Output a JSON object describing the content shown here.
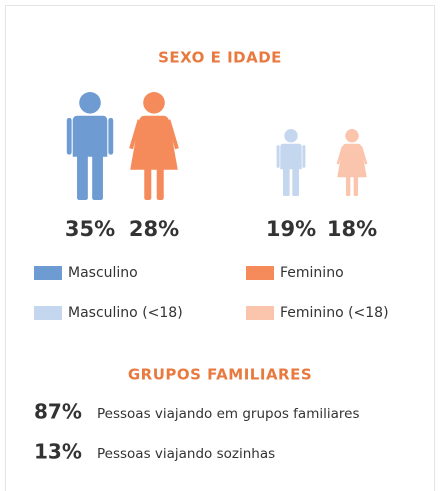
{
  "sex_age": {
    "title": "SEXO E IDADE",
    "figures": [
      {
        "value": "35%",
        "kind": "male",
        "color": "#6f9bd3"
      },
      {
        "value": "28%",
        "kind": "female",
        "color": "#f58a5a"
      },
      {
        "value": "19%",
        "kind": "male",
        "color": "#c5d7ef"
      },
      {
        "value": "18%",
        "kind": "female",
        "color": "#fbc4ac"
      }
    ],
    "legend": [
      {
        "label": "Masculino",
        "color": "#6f9bd3"
      },
      {
        "label": "Feminino",
        "color": "#f58a5a"
      },
      {
        "label": "Masculino (<18)",
        "color": "#c5d7ef"
      },
      {
        "label": "Feminino (<18)",
        "color": "#fbc4ac"
      }
    ]
  },
  "family": {
    "title": "GRUPOS FAMILIARES",
    "rows": [
      {
        "value": "87%",
        "label": "Pessoas viajando em grupos familiares"
      },
      {
        "value": "13%",
        "label": "Pessoas viajando sozinhas"
      }
    ]
  }
}
